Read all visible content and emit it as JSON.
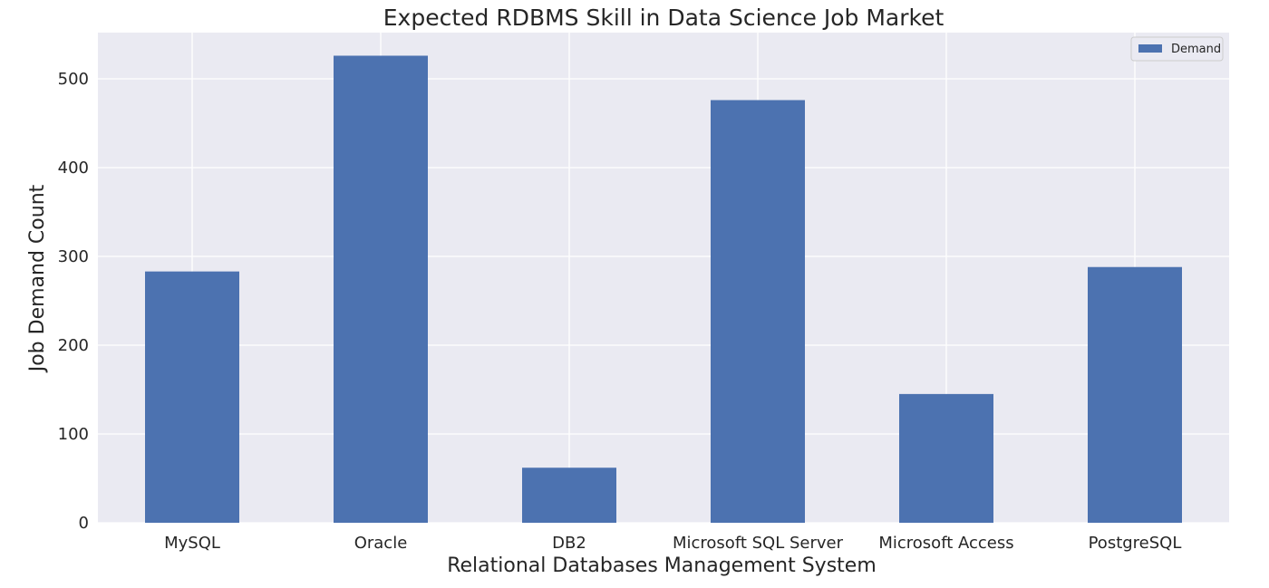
{
  "chart_data": {
    "type": "bar",
    "title": "Expected RDBMS Skill in Data Science Job Market",
    "xlabel": "Relational Databases Management System",
    "ylabel": "Job Demand Count",
    "categories": [
      "MySQL",
      "Oracle",
      "DB2",
      "Microsoft SQL Server",
      "Microsoft Access",
      "PostgreSQL"
    ],
    "series": [
      {
        "name": "Demand",
        "values": [
          283,
          526,
          62,
          476,
          145,
          288
        ],
        "color": "#4c72b0"
      }
    ],
    "yticks": [
      0,
      100,
      200,
      300,
      400,
      500
    ],
    "ylim": [
      0,
      552
    ],
    "grid": true,
    "legend": "top-right",
    "colors": {
      "plot_background": "#eaeaf2",
      "grid": "#ffffff",
      "bar": "#4c72b0"
    }
  }
}
